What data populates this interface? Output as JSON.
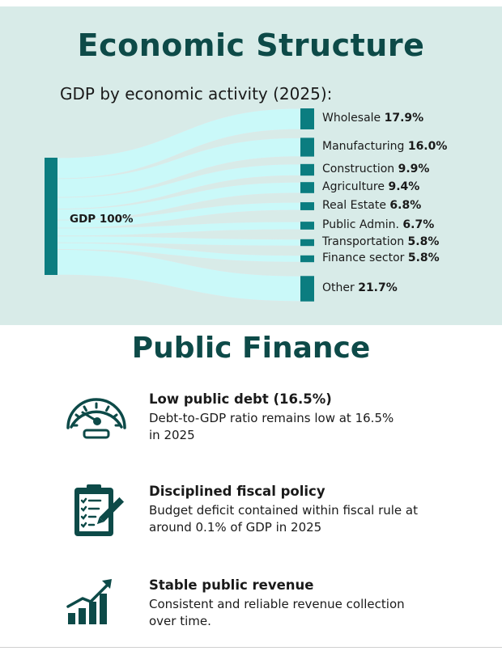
{
  "economic_structure": {
    "title": "Economic Structure",
    "subtitle": "GDP by economic activity (2025):",
    "source_label": "GDP 100%",
    "colors": {
      "node": "#0b7d80",
      "flow": "#c8fbfb",
      "background": "#d8ebe8"
    }
  },
  "chart_data": {
    "type": "sankey",
    "source": "GDP",
    "source_value": 100,
    "unit": "%",
    "categories": [
      "Wholesale",
      "Manufacturing",
      "Construction",
      "Agriculture",
      "Real Estate",
      "Public Admin.",
      "Transportation",
      "Finance sector",
      "Other"
    ],
    "values": [
      17.9,
      16.0,
      9.9,
      9.4,
      6.8,
      6.7,
      5.8,
      5.8,
      21.7
    ],
    "value_labels": [
      "17.9%",
      "16.0%",
      "9.9%",
      "9.4%",
      "6.8%",
      "6.7%",
      "5.8%",
      "5.8%",
      "21.7%"
    ]
  },
  "public_finance": {
    "title": "Public Finance",
    "items": [
      {
        "icon": "gauge-icon",
        "heading": "Low public debt (16.5%)",
        "line1": "Debt-to-GDP ratio remains low at 16.5%",
        "line2": "in 2025"
      },
      {
        "icon": "clipboard-checklist-icon",
        "heading": "Disciplined fiscal policy",
        "line1": "Budget deficit contained within fiscal rule at",
        "line2": "around 0.1% of GDP in 2025"
      },
      {
        "icon": "growth-chart-icon",
        "heading": "Stable public revenue",
        "line1": "Consistent and reliable revenue collection",
        "line2": "over time."
      }
    ],
    "icon_color": "#0d4a48"
  }
}
